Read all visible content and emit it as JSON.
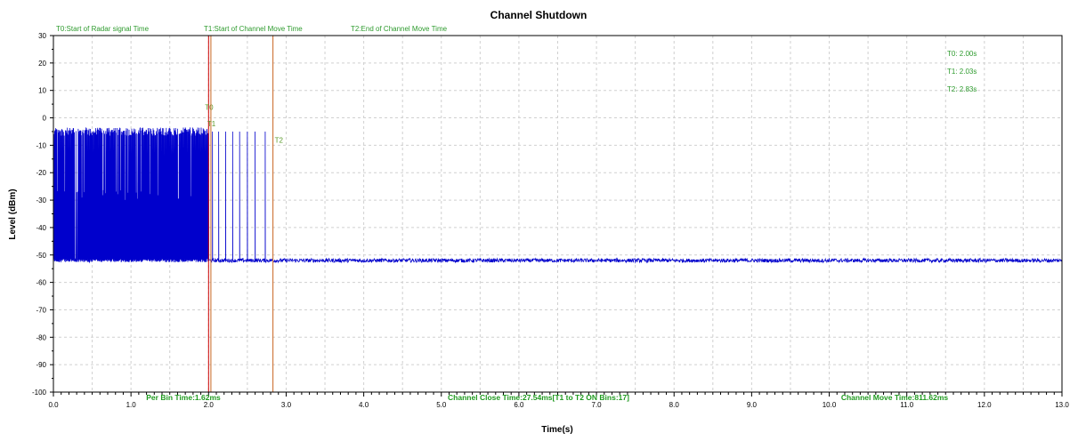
{
  "chart_data": {
    "type": "line",
    "title": "Channel Shutdown",
    "xlabel": "Time(s)",
    "ylabel": "Level (dBm)",
    "xlim": [
      0,
      13
    ],
    "ylim": [
      -100,
      30
    ],
    "x_ticks": [
      "0.0",
      "1.0",
      "2.0",
      "3.0",
      "4.0",
      "5.0",
      "6.0",
      "7.0",
      "8.0",
      "9.0",
      "10.0",
      "11.0",
      "12.0",
      "13.0"
    ],
    "y_ticks": [
      "30",
      "20",
      "10",
      "0",
      "-10",
      "-20",
      "-30",
      "-40",
      "-50",
      "-60",
      "-70",
      "-80",
      "-90",
      "-100"
    ],
    "grid": true,
    "series": [
      {
        "color": "#0000cc",
        "noise_floor_dbm": -52,
        "burst_peak_dbm": -5,
        "dense_burst_x_range": [
          0.0,
          2.0
        ],
        "sparse_pulses_x": [
          2.05,
          2.13,
          2.22,
          2.31,
          2.4,
          2.5,
          2.6,
          2.73
        ]
      }
    ],
    "markers": [
      {
        "id": "T0",
        "label": "T0",
        "x": 2.0,
        "color": "#cc0000",
        "description": "T0:Start of Radar signal Time",
        "readout": "T0: 2.00s"
      },
      {
        "id": "T1",
        "label": "T1",
        "x": 2.03,
        "color": "#c86420",
        "description": "T1:Start of Channel Move Time",
        "readout": "T1: 2.03s"
      },
      {
        "id": "T2",
        "label": "T2",
        "x": 2.83,
        "color": "#c86420",
        "description": "T2:End of Channel Move Time",
        "readout": "T2: 2.83s"
      }
    ],
    "annotations": {
      "per_bin_time": "Per Bin Time:1.62ms",
      "channel_close_time": "Channel Close Time:27.54ms[T1 to T2 ON Bins:17]",
      "channel_move_time": "Channel Move Time:811.62ms"
    }
  }
}
